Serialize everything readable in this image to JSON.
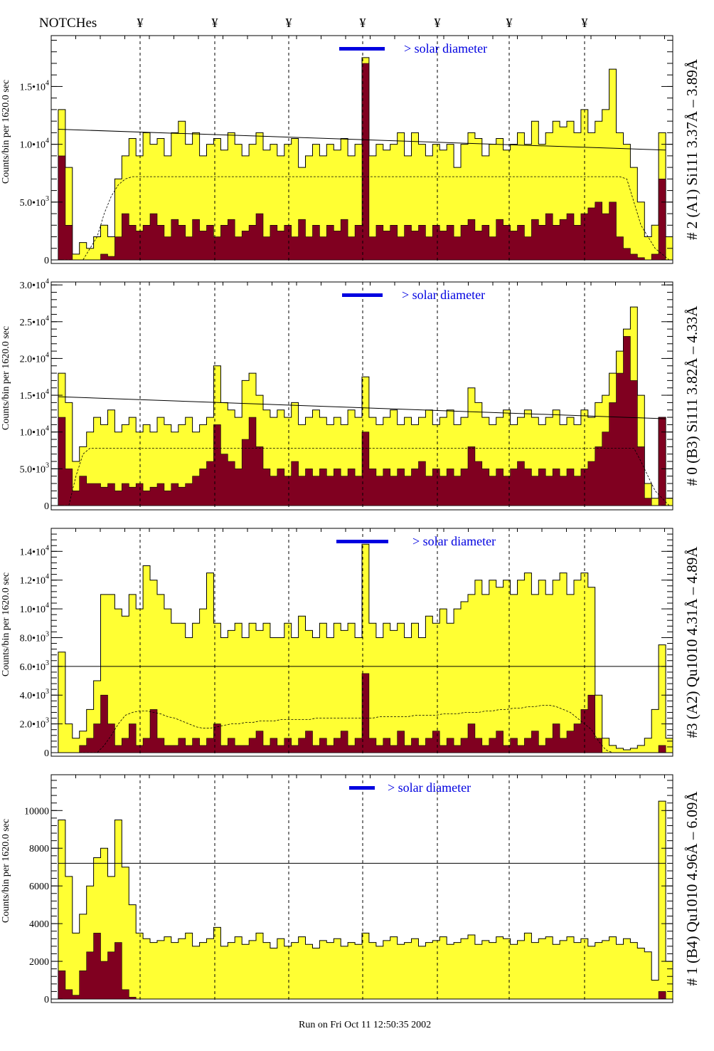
{
  "header": {
    "notches_label": "NOTCHes",
    "notch_symbol": "¥",
    "notch_count": 7
  },
  "footer": {
    "run_stamp": "Run on Fri Oct 11 12:50:35 2002"
  },
  "colors": {
    "yellow": "#ffff33",
    "darkred": "#800020",
    "blue": "#0000e0",
    "line": "#000000"
  },
  "chart_data": [
    {
      "type": "bar",
      "title": "# 2 (A1) Si111  3.37Å – 3.89Å",
      "ylabel": "Counts/bin per   1620.0 sec",
      "legend_text": "> solar diameter",
      "units": "thousands of counts",
      "ylim": [
        0,
        19.4
      ],
      "yticks": [
        {
          "v": 0,
          "m": "0",
          "e": ""
        },
        {
          "v": 5,
          "m": "5.0•10",
          "e": "3"
        },
        {
          "v": 10,
          "m": "1.0•10",
          "e": "4"
        },
        {
          "v": 15,
          "m": "1.5•10",
          "e": "4"
        }
      ],
      "total": [
        0,
        13,
        8,
        0.5,
        1.5,
        1,
        2,
        3,
        2,
        7,
        9,
        10.5,
        9,
        11,
        10,
        10.5,
        9,
        11,
        12,
        10,
        11,
        9,
        10,
        10.5,
        9.5,
        11,
        10,
        9,
        10,
        11,
        9.5,
        10,
        9,
        10,
        10.5,
        8,
        9,
        10,
        9,
        10,
        9.5,
        10.5,
        9,
        10,
        17.5,
        9,
        10,
        9.5,
        10,
        11,
        9,
        11,
        10,
        9,
        10,
        9.5,
        10,
        8,
        10,
        11,
        10.5,
        9,
        10,
        10.5,
        9.5,
        10,
        11,
        10,
        12,
        10,
        11,
        12,
        11.5,
        12,
        11,
        13,
        11,
        12,
        13,
        16.5,
        11,
        10,
        8,
        5,
        2,
        3,
        11,
        2
      ],
      "component": [
        0,
        9,
        3,
        0,
        0,
        0,
        0,
        0.5,
        0.3,
        2,
        4,
        3,
        2.5,
        3,
        4,
        3,
        2,
        3.5,
        3,
        2,
        3.5,
        2.5,
        3,
        2,
        3,
        3.5,
        2,
        2.5,
        3,
        4,
        2,
        3,
        2.5,
        3,
        2,
        3.5,
        2,
        3,
        2,
        3,
        2.5,
        3.5,
        2,
        3,
        17,
        2,
        3,
        2.5,
        3,
        2,
        3,
        2.5,
        3,
        2,
        3,
        2.5,
        3,
        2,
        3,
        3.5,
        2.5,
        3,
        2,
        3.5,
        3,
        2.5,
        3,
        2,
        3.5,
        3,
        4,
        3,
        3.5,
        4,
        3,
        4,
        4.5,
        5,
        4,
        5,
        2,
        1,
        0.5,
        0.2,
        0,
        0.5,
        7,
        0
      ],
      "solid_line": [
        11.3,
        9.5
      ],
      "dashed_line": [
        0,
        0,
        0,
        0,
        0,
        1,
        2,
        4,
        5.5,
        6.5,
        7,
        7.2,
        7.2,
        7.2,
        7.2,
        7.2,
        7.2,
        7.2,
        7.2,
        7.2,
        7.2,
        7.2,
        7.2,
        7.2,
        7.2,
        7.2,
        7.2,
        7.2,
        7.2,
        7.2,
        7.2,
        7.2,
        7.2,
        7.2,
        7.2,
        7.2,
        7.2,
        7.2,
        7.2,
        7.2,
        7.2,
        7.2,
        7.2,
        7.2,
        7.2,
        7.2,
        7.2,
        7.2,
        7.2,
        7.2,
        7.2,
        7.2,
        7.2,
        7.2,
        7.2,
        7.2,
        7.2,
        7.2,
        7.2,
        7.2,
        7.2,
        7.2,
        7.2,
        7.2,
        7.2,
        7.2,
        7.2,
        7.2,
        7.2,
        7.2,
        7.2,
        7.2,
        7.2,
        7.2,
        7.2,
        7.2,
        7.2,
        7.2,
        7.2,
        7.2,
        7.2,
        7,
        5,
        3,
        2,
        1,
        0.5,
        0
      ]
    },
    {
      "type": "bar",
      "title": "# 0 (B3) Si111  3.82Å – 4.33Å",
      "ylabel": "Counts/bin per   1620.0 sec",
      "legend_text": "> solar diameter",
      "units": "thousands of counts",
      "ylim": [
        0,
        30.4
      ],
      "yticks": [
        {
          "v": 0,
          "m": "0",
          "e": ""
        },
        {
          "v": 5,
          "m": "5.0•10",
          "e": "3"
        },
        {
          "v": 10,
          "m": "1.0•10",
          "e": "4"
        },
        {
          "v": 15,
          "m": "1.5•10",
          "e": "4"
        },
        {
          "v": 20,
          "m": "2.0•10",
          "e": "4"
        },
        {
          "v": 25,
          "m": "2.5•10",
          "e": "4"
        },
        {
          "v": 30,
          "m": "3.0•10",
          "e": "4"
        }
      ],
      "total": [
        0,
        18,
        14,
        6,
        8,
        10,
        12,
        11,
        13,
        10,
        11,
        12,
        10,
        11,
        10,
        12,
        11,
        10,
        11,
        12,
        10,
        11,
        12,
        19,
        14,
        13,
        12,
        17,
        18,
        15,
        13,
        12,
        13,
        12,
        14,
        11,
        12,
        13,
        12,
        11,
        12,
        11,
        13,
        12,
        17.5,
        12,
        11,
        12,
        13,
        11,
        12,
        11,
        12,
        13,
        11,
        12,
        13,
        11,
        12,
        16,
        14,
        12,
        11,
        12,
        13,
        11,
        12,
        13,
        12,
        11,
        12,
        13,
        11,
        12,
        11,
        13,
        12,
        14,
        15,
        18,
        21,
        24,
        27,
        15,
        3,
        1,
        12,
        1
      ],
      "component": [
        0,
        12,
        5,
        2,
        4,
        3,
        3,
        2.5,
        3,
        2,
        3,
        2.5,
        3,
        2,
        2.5,
        3,
        2,
        3,
        2.5,
        3,
        4,
        5,
        6,
        11,
        7,
        6,
        5,
        9,
        12,
        8,
        5,
        4,
        5,
        4,
        6,
        4,
        5,
        4,
        5,
        4,
        5,
        4,
        5,
        4,
        10,
        5,
        4,
        5,
        4,
        5,
        4,
        5,
        6,
        4,
        5,
        4,
        5,
        4,
        5,
        8,
        6,
        5,
        4,
        5,
        4,
        5,
        6,
        5,
        4,
        5,
        4,
        5,
        4,
        5,
        4,
        5,
        6,
        8,
        10,
        14,
        18,
        23,
        17,
        8,
        1,
        0,
        12,
        0
      ],
      "solid_line": [
        14.8,
        11.8
      ],
      "dashed_line": [
        0,
        0,
        0,
        4,
        7,
        7.8,
        7.8,
        7.8,
        7.8,
        7.8,
        7.8,
        7.8,
        7.8,
        7.8,
        7.8,
        7.8,
        7.8,
        7.8,
        7.8,
        7.8,
        7.8,
        7.8,
        7.8,
        7.8,
        7.8,
        7.8,
        7.8,
        7.8,
        7.8,
        7.8,
        7.8,
        7.8,
        7.8,
        7.8,
        7.8,
        7.8,
        7.8,
        7.8,
        7.8,
        7.8,
        7.8,
        7.8,
        7.8,
        7.8,
        7.8,
        7.8,
        7.8,
        7.8,
        7.8,
        7.8,
        7.8,
        7.8,
        7.8,
        7.8,
        7.8,
        7.8,
        7.8,
        7.8,
        7.8,
        7.8,
        7.8,
        7.8,
        7.8,
        7.8,
        7.8,
        7.8,
        7.8,
        7.8,
        7.8,
        7.8,
        7.8,
        7.8,
        7.8,
        7.8,
        7.8,
        7.8,
        7.8,
        7.8,
        7.8,
        7.8,
        7.8,
        7.8,
        7.8,
        6,
        4,
        2,
        1,
        0
      ]
    },
    {
      "type": "bar",
      "title": "#3 (A2) Qu1010  4.31Å – 4.89Å",
      "ylabel": "Counts/bin per   1620.0 sec",
      "legend_text": "> solar diameter",
      "units": "thousands of counts",
      "ylim": [
        0,
        15.6
      ],
      "yticks": [
        {
          "v": 0,
          "m": "0",
          "e": ""
        },
        {
          "v": 2,
          "m": "2.0•10",
          "e": "3"
        },
        {
          "v": 4,
          "m": "4.0•10",
          "e": "3"
        },
        {
          "v": 6,
          "m": "6.0•10",
          "e": "3"
        },
        {
          "v": 8,
          "m": "8.0•10",
          "e": "3"
        },
        {
          "v": 10,
          "m": "1.0•10",
          "e": "4"
        },
        {
          "v": 12,
          "m": "1.2•10",
          "e": "4"
        },
        {
          "v": 14,
          "m": "1.4•10",
          "e": "4"
        }
      ],
      "total": [
        0,
        7,
        2,
        1,
        1.5,
        3,
        5,
        11,
        11,
        10,
        9.5,
        11,
        10,
        13,
        12,
        11,
        10,
        9,
        9,
        8,
        9,
        10,
        12.5,
        9,
        8,
        8.5,
        9,
        8,
        9,
        8.5,
        9,
        8,
        8,
        9,
        8,
        9.5,
        8.5,
        8,
        9,
        8,
        9,
        8.5,
        9,
        8,
        14.5,
        9,
        8,
        9,
        8.5,
        9,
        8,
        9,
        8,
        9.5,
        9,
        10,
        9,
        10,
        10.5,
        11,
        12,
        11,
        12,
        11.5,
        12,
        11,
        12,
        12.5,
        11,
        12,
        11,
        12,
        12.5,
        11,
        12,
        12.5,
        11.5,
        4,
        1,
        0.5,
        0.3,
        0.2,
        0.3,
        0.5,
        1,
        3,
        7.5,
        1
      ],
      "component": [
        0,
        0,
        0,
        0,
        0.5,
        1,
        2,
        4,
        2,
        0.5,
        1,
        2,
        0.5,
        1,
        3,
        1,
        0.5,
        0.5,
        1,
        0.5,
        1,
        0.5,
        1,
        2,
        0.5,
        1,
        0.5,
        0.5,
        1,
        1.5,
        0.5,
        1,
        0.5,
        1,
        0.5,
        1,
        1.5,
        0.5,
        1,
        0.5,
        1,
        1.5,
        0.5,
        1,
        5.5,
        1,
        0.5,
        1,
        0.5,
        1.5,
        0.5,
        1,
        0.5,
        1,
        1.5,
        0.5,
        1,
        0.5,
        1,
        2,
        1,
        0.5,
        1,
        1.5,
        0.5,
        1,
        0.5,
        1,
        1.5,
        0.5,
        1,
        2,
        1,
        1.5,
        2,
        3,
        4,
        1,
        0,
        0,
        0,
        0,
        0,
        0,
        0,
        0,
        0.5,
        0
      ],
      "solid_line": [
        6.0,
        6.0
      ],
      "dashed_line": [
        0,
        0,
        0,
        0,
        0,
        0,
        0,
        0.5,
        1.2,
        2,
        2.6,
        2.8,
        2.9,
        2.9,
        2.8,
        2.7,
        2.5,
        2.4,
        2.2,
        2.0,
        1.8,
        1.7,
        1.7,
        1.8,
        1.9,
        2.0,
        2.0,
        2.1,
        2.1,
        2.2,
        2.2,
        2.2,
        2.3,
        2.3,
        2.3,
        2.3,
        2.3,
        2.4,
        2.4,
        2.4,
        2.4,
        2.4,
        2.4,
        2.4,
        2.4,
        2.4,
        2.5,
        2.5,
        2.5,
        2.5,
        2.5,
        2.6,
        2.6,
        2.6,
        2.6,
        2.7,
        2.7,
        2.7,
        2.8,
        2.8,
        2.8,
        2.9,
        2.9,
        3.0,
        3.0,
        3.1,
        3.1,
        3.2,
        3.2,
        3.3,
        3.3,
        3.2,
        3.0,
        2.8,
        2.4,
        2.0,
        1.6,
        0.8,
        0.2,
        0,
        0,
        0,
        0,
        0,
        0,
        0,
        0,
        0
      ]
    },
    {
      "type": "bar",
      "title": "# 1 (B4) Qu1010 4.96Å – 6.09Å",
      "ylabel": "Counts/bin per   1620.0 sec",
      "legend_text": "> solar diameter",
      "units": "counts",
      "ylim": [
        0,
        11900
      ],
      "yticks": [
        {
          "v": 0,
          "m": "0",
          "e": ""
        },
        {
          "v": 2000,
          "m": "2000",
          "e": ""
        },
        {
          "v": 4000,
          "m": "4000",
          "e": ""
        },
        {
          "v": 6000,
          "m": "6000",
          "e": ""
        },
        {
          "v": 8000,
          "m": "8000",
          "e": ""
        },
        {
          "v": 10000,
          "m": "10000",
          "e": ""
        }
      ],
      "total": [
        0,
        9500,
        6500,
        3500,
        4500,
        6000,
        7500,
        8000,
        6500,
        9500,
        7000,
        5000,
        3500,
        3200,
        3000,
        3100,
        3300,
        3000,
        3200,
        3500,
        2800,
        3000,
        3200,
        3800,
        2800,
        3000,
        3300,
        2900,
        3100,
        3500,
        3000,
        2700,
        3200,
        2800,
        3000,
        3300,
        2900,
        2700,
        3100,
        3000,
        3200,
        2800,
        3000,
        2900,
        3500,
        3000,
        2800,
        3100,
        3300,
        2900,
        3000,
        3200,
        2800,
        3000,
        3100,
        3300,
        2900,
        3000,
        3200,
        3400,
        2900,
        3100,
        3000,
        3300,
        3200,
        2900,
        3100,
        3500,
        3000,
        3200,
        3300,
        2900,
        3100,
        3300,
        3000,
        3200,
        2800,
        3000,
        3100,
        3300,
        2900,
        3200,
        3000,
        2700,
        2500,
        1000,
        10500,
        2000
      ],
      "component": [
        0,
        1500,
        500,
        200,
        1500,
        2500,
        3500,
        2000,
        2500,
        3000,
        500,
        100,
        0,
        0,
        0,
        0,
        0,
        0,
        0,
        0,
        0,
        0,
        0,
        0,
        0,
        0,
        0,
        0,
        0,
        0,
        0,
        0,
        0,
        0,
        0,
        0,
        0,
        0,
        0,
        0,
        0,
        0,
        0,
        0,
        0,
        0,
        0,
        0,
        0,
        0,
        0,
        0,
        0,
        0,
        0,
        0,
        0,
        0,
        0,
        0,
        0,
        0,
        0,
        0,
        0,
        0,
        0,
        0,
        0,
        0,
        0,
        0,
        0,
        0,
        0,
        0,
        0,
        0,
        0,
        0,
        0,
        0,
        0,
        0,
        0,
        0,
        400,
        0
      ],
      "solid_line": [
        7200,
        7200
      ],
      "dashed_line": []
    }
  ]
}
